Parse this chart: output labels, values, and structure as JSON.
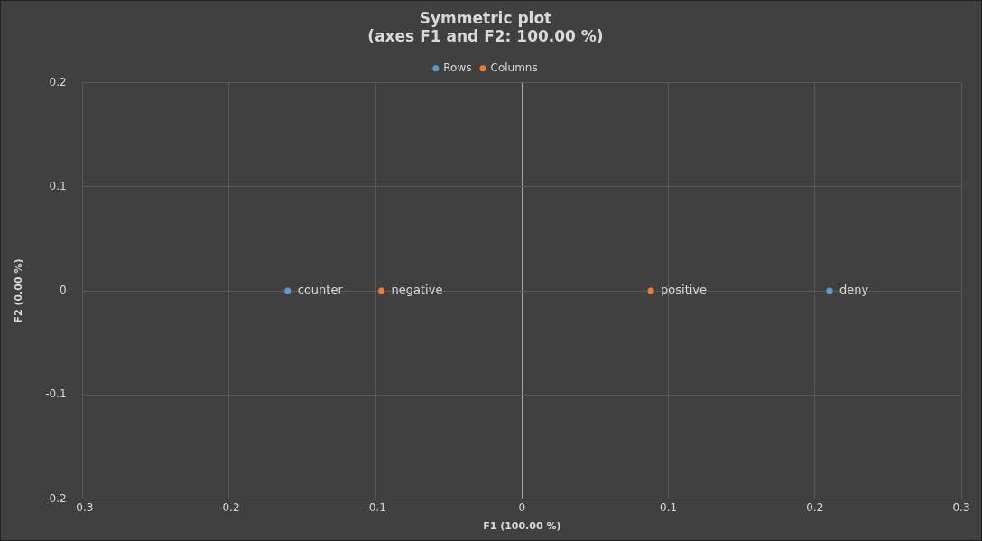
{
  "chart_data": {
    "type": "scatter",
    "title": "Symmetric plot",
    "subtitle": "(axes F1 and F2: 100.00 %)",
    "xlabel": "F1 (100.00 %)",
    "ylabel": "F2 (0.00 %)",
    "series": [
      {
        "name": "Rows",
        "color": "#5b9bd5",
        "x": [
          -0.16,
          0.21
        ],
        "values": [
          0,
          0
        ]
      },
      {
        "name": "Columns",
        "color": "#ed7d31",
        "x": [
          -0.096,
          0.088
        ],
        "values": [
          0,
          0
        ]
      }
    ],
    "annotations": [
      {
        "text": "counter",
        "x": -0.16,
        "y": 0
      },
      {
        "text": "deny",
        "x": 0.21,
        "y": 0
      },
      {
        "text": "negative",
        "x": -0.096,
        "y": 0
      },
      {
        "text": "positive",
        "x": 0.088,
        "y": 0
      }
    ],
    "xlim": [
      -0.3,
      0.3
    ],
    "xticks": [
      -0.3,
      -0.2,
      -0.1,
      0,
      0.1,
      0.2,
      0.3
    ],
    "ylim": [
      -0.2,
      0.2
    ],
    "yticks": [
      -0.2,
      -0.1,
      0,
      0.1,
      0.2
    ],
    "grid": true,
    "legend": "top",
    "marker": "circle"
  }
}
